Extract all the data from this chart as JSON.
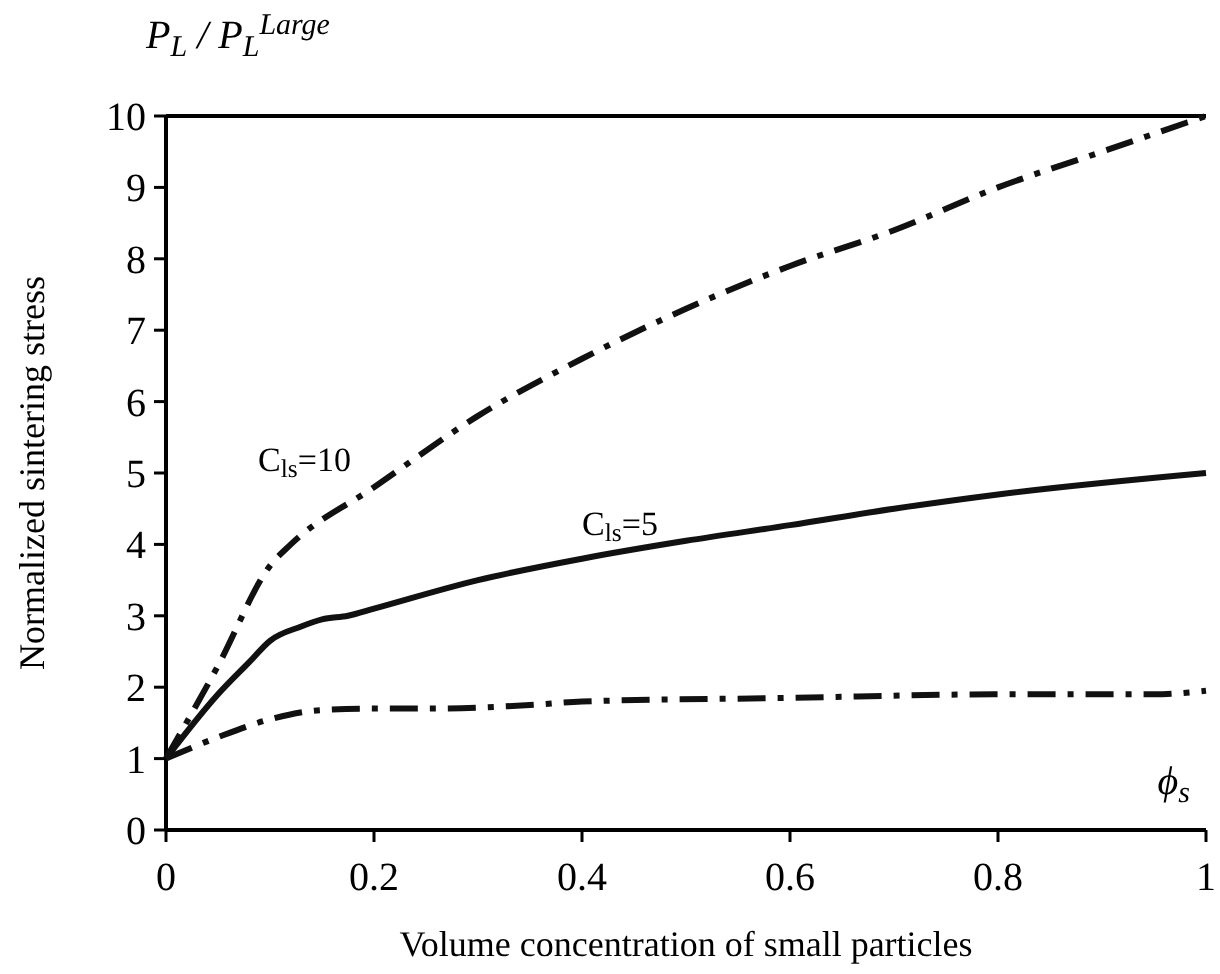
{
  "chart_data": {
    "type": "line",
    "title": "P$_{L}$ / P$_{L}$$^{Large}$",
    "xlabel": "Volume concentration of small particles",
    "ylabel": "Normalized sintering stress",
    "annotations": [
      "ϕ$_{s}$"
    ],
    "xlim": [
      0,
      1
    ],
    "ylim": [
      0,
      10
    ],
    "xticks": [
      0,
      0.2,
      0.4,
      0.6,
      0.8,
      1
    ],
    "yticks": [
      0,
      1,
      2,
      3,
      4,
      5,
      6,
      7,
      8,
      9,
      10
    ],
    "grid": false,
    "marker": "none",
    "series": [
      {
        "name": "C$_{ls}$=10",
        "color": "#111111",
        "line_style": "dashed",
        "x": [
          0,
          0.05,
          0.1,
          0.12,
          0.2,
          0.3,
          0.4,
          0.5,
          0.6,
          0.7,
          0.8,
          0.9,
          1
        ],
        "values": [
          1,
          2.3,
          3.7,
          4.0,
          4.8,
          5.8,
          6.6,
          7.3,
          7.9,
          8.4,
          9.0,
          9.5,
          10
        ]
      },
      {
        "name": "C$_{ls}$=5",
        "color": "#111111",
        "line_style": "solid",
        "x": [
          0,
          0.05,
          0.08,
          0.1,
          0.13,
          0.15,
          0.175,
          0.2,
          0.3,
          0.4,
          0.5,
          0.6,
          0.7,
          0.8,
          1
        ],
        "values": [
          1,
          1.9,
          2.35,
          2.65,
          2.85,
          2.95,
          3.0,
          3.1,
          3.5,
          3.8,
          4.05,
          4.27,
          4.5,
          4.7,
          5.0
        ]
      },
      {
        "color": "#111111",
        "line_style": "dashed",
        "x": [
          0,
          0.05,
          0.1,
          0.15,
          0.2,
          0.25,
          0.35,
          0.4,
          0.6,
          0.8,
          0.95,
          1
        ],
        "values": [
          1,
          1.3,
          1.55,
          1.68,
          1.7,
          1.7,
          1.75,
          1.8,
          1.85,
          1.9,
          1.9,
          1.95
        ]
      }
    ]
  }
}
